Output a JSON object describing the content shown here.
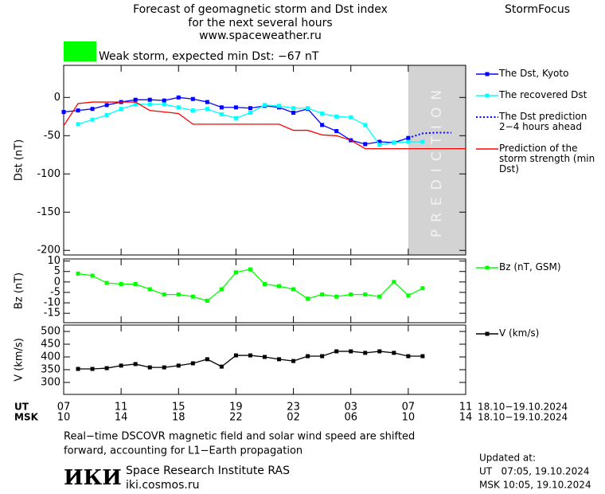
{
  "header": {
    "title_lines": [
      "Forecast of geomagnetic storm and Dst index",
      "for the next several hours",
      "www.spaceweather.ru"
    ],
    "brand": "StormFocus",
    "status": "Weak storm, expected min Dst: −67 nT",
    "status_color": "#00ff00"
  },
  "time_axis": {
    "xlim": [
      0,
      28
    ],
    "ut_label": "UT",
    "msk_label": "MSK",
    "ut_ticks": [
      {
        "value": 0,
        "label": "07"
      },
      {
        "value": 4,
        "label": "11"
      },
      {
        "value": 8,
        "label": "15"
      },
      {
        "value": 12,
        "label": "19"
      },
      {
        "value": 16,
        "label": "23"
      },
      {
        "value": 20,
        "label": "03"
      },
      {
        "value": 24,
        "label": "07"
      },
      {
        "value": 28,
        "label": "11"
      }
    ],
    "msk_ticks": [
      "10",
      "14",
      "18",
      "22",
      "02",
      "06",
      "10",
      "14"
    ],
    "date_range": "18.10−19.10.2024"
  },
  "chart_data": [
    {
      "type": "line",
      "y_label": "Dst (nT)",
      "ylim": [
        -206,
        42
      ],
      "yticks": [
        0,
        -50,
        -100,
        -150,
        -200
      ],
      "prediction_zone": [
        24,
        28
      ],
      "prediction_label": "PREDICTION",
      "series": [
        {
          "name": "The Dst, Kyoto",
          "color": "#0000ff",
          "marker": "square",
          "style": "solid",
          "x": [
            0,
            1,
            2,
            3,
            4,
            5,
            6,
            7,
            8,
            9,
            10,
            11,
            12,
            13,
            14,
            15,
            16,
            17,
            18,
            19,
            20,
            21,
            22,
            23,
            24
          ],
          "values": [
            -19,
            -17,
            -15,
            -10,
            -6,
            -3,
            -3,
            -4,
            0,
            -2,
            -6,
            -13,
            -13,
            -14,
            -11,
            -13,
            -20,
            -15,
            -36,
            -44,
            -56,
            -61,
            -58,
            -59,
            -53
          ]
        },
        {
          "name": "The recovered Dst",
          "color": "#00ffff",
          "marker": "square",
          "style": "solid",
          "x": [
            1,
            2,
            3,
            4,
            5,
            6,
            7,
            8,
            9,
            10,
            11,
            12,
            13,
            14,
            15,
            16,
            17,
            18,
            19,
            20,
            21,
            22,
            23,
            24,
            25
          ],
          "values": [
            -35,
            -29,
            -23,
            -15,
            -9,
            -9,
            -9,
            -13,
            -17,
            -15,
            -22,
            -27,
            -20,
            -10,
            -11,
            -14,
            -14,
            -21,
            -25,
            -26,
            -36,
            -62,
            -59,
            -58,
            -58
          ]
        },
        {
          "name": "The Dst prediction 2−4 hours ahead",
          "color": "#0000ff",
          "marker": "none",
          "style": "dotted",
          "x": [
            24,
            25,
            26,
            27
          ],
          "values": [
            -53,
            -47,
            -46,
            -46
          ]
        },
        {
          "name": "Prediction of the storm strength (min Dst)",
          "color": "#ff0000",
          "marker": "none",
          "style": "solid",
          "x": [
            0,
            1,
            2,
            3,
            4,
            5,
            6,
            7,
            8,
            9,
            10,
            11,
            12,
            13,
            14,
            15,
            16,
            17,
            18,
            19,
            20,
            21,
            22,
            23,
            24,
            25,
            26,
            27,
            28
          ],
          "values": [
            -37,
            -8,
            -6,
            -6,
            -6,
            -6,
            -17,
            -19,
            -21,
            -35,
            -35,
            -35,
            -35,
            -35,
            -35,
            -35,
            -43,
            -43,
            -49,
            -50,
            -56,
            -67,
            -67,
            -67,
            -67,
            -67,
            -67,
            -67,
            -67
          ]
        }
      ]
    },
    {
      "type": "line",
      "y_label": "Bz (nT)",
      "ylim": [
        -19.5,
        11
      ],
      "yticks": [
        10,
        5,
        0,
        -5,
        -10,
        -15
      ],
      "series": [
        {
          "name": "Bz (nT, GSM)",
          "color": "#00ff00",
          "marker": "square",
          "style": "solid",
          "x": [
            1,
            2,
            3,
            4,
            5,
            6,
            7,
            8,
            9,
            10,
            11,
            12,
            13,
            14,
            15,
            16,
            17,
            18,
            19,
            20,
            21,
            22,
            23,
            24,
            25
          ],
          "values": [
            4,
            3,
            -0.5,
            -1,
            -1,
            -3.5,
            -6,
            -6,
            -7,
            -9,
            -3.5,
            4.6,
            6,
            -1,
            -2,
            -3.5,
            -8,
            -6,
            -7,
            -6,
            -6,
            -7,
            0,
            -6.5,
            -3
          ]
        }
      ]
    },
    {
      "type": "line",
      "y_label": "V (km/s)",
      "ylim": [
        253,
        525
      ],
      "yticks": [
        500,
        450,
        400,
        350,
        300
      ],
      "series": [
        {
          "name": "V (km/s)",
          "color": "#000000",
          "marker": "square",
          "style": "solid",
          "x": [
            1,
            2,
            3,
            4,
            5,
            6,
            7,
            8,
            9,
            10,
            11,
            12,
            13,
            14,
            15,
            16,
            17,
            18,
            19,
            20,
            21,
            22,
            23,
            24,
            25
          ],
          "values": [
            353,
            353,
            356,
            366,
            372,
            359,
            359,
            366,
            375,
            391,
            362,
            406,
            406,
            400,
            391,
            384,
            403,
            403,
            422,
            422,
            416,
            422,
            416,
            403,
            403
          ]
        }
      ]
    }
  ],
  "footer": {
    "note_lines": [
      "Real−time DSCOVR magnetic field and solar wind speed are shifted",
      "forward, accounting for L1−Earth propagation"
    ],
    "logo": "ИКИ",
    "institute": "Space Research Institute RAS",
    "site": "iki.cosmos.ru",
    "updated_label": "Updated at:",
    "updated_ut": "UT   07:05, 19.10.2024",
    "updated_msk": "MSK 10:05, 19.10.2024"
  }
}
